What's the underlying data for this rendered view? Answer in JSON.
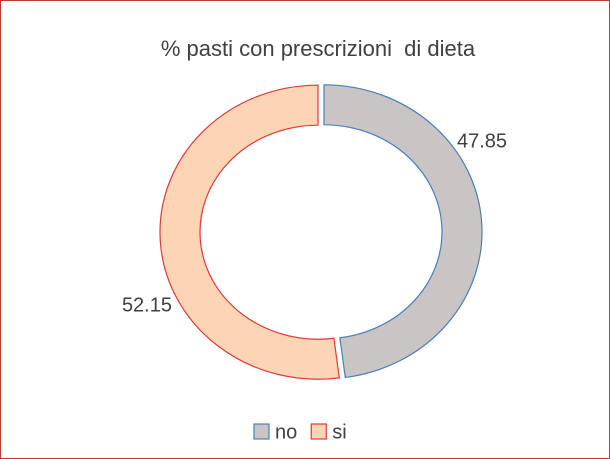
{
  "chart_data": {
    "type": "donut",
    "title": "% pasti con prescrizioni  di dieta",
    "categories": [
      "no",
      "si"
    ],
    "values": [
      47.85,
      52.15
    ],
    "colors": [
      "#c9c5c4",
      "#fcd5b5"
    ],
    "edge_colors": [
      "#4a7ebb",
      "#e0383e"
    ],
    "legend": "bottom"
  }
}
